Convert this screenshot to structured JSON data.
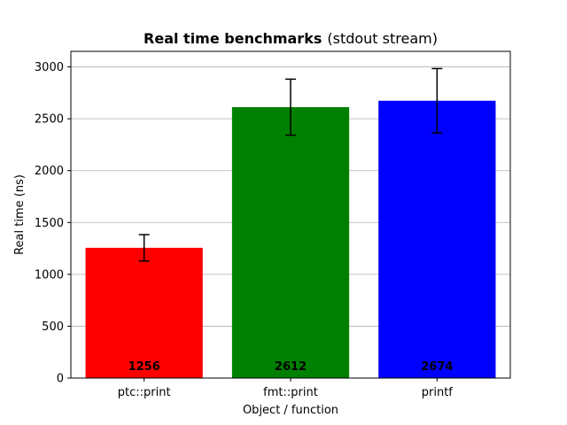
{
  "chart_data": {
    "type": "bar",
    "title": "Real time benchmarks",
    "subtitle": "(stdout stream)",
    "xlabel": "Object / function",
    "ylabel": "Real time (ns)",
    "categories": [
      "ptc::print",
      "fmt::print",
      "printf"
    ],
    "values": [
      1256,
      2612,
      2674
    ],
    "errors": [
      127,
      270,
      310
    ],
    "value_labels": [
      "1256",
      "2612",
      "2674"
    ],
    "colors": [
      "#ff0000",
      "#008000",
      "#0000ff"
    ],
    "ylim": [
      0,
      3150
    ],
    "yticks": [
      0,
      500,
      1000,
      1500,
      2000,
      2500,
      3000
    ],
    "grid": "y"
  }
}
